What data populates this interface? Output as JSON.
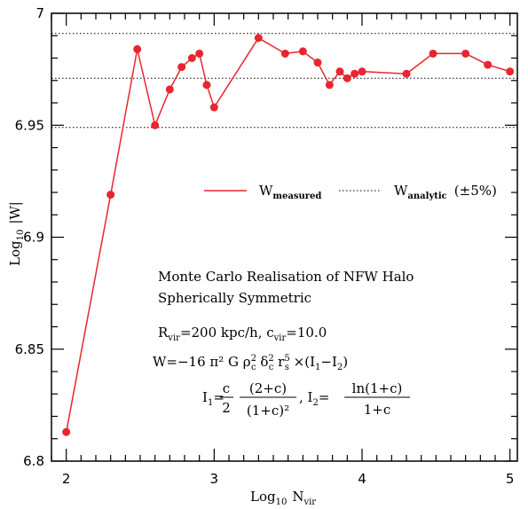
{
  "chart_data": {
    "type": "line",
    "xlabel_main": "Log",
    "xlabel_sub": "10",
    "xlabel_var": "N",
    "xlabel_var_sub": "vir",
    "ylabel_main": "Log",
    "ylabel_sub": "10",
    "ylabel_var": "|W|",
    "xlim": [
      1.9,
      5.05
    ],
    "ylim": [
      6.8,
      7.0
    ],
    "xticks": [
      "2",
      "3",
      "4",
      "5"
    ],
    "yticks": [
      "6.8",
      "6.85",
      "6.9",
      "6.95",
      "7"
    ],
    "series": [
      {
        "name": "W_measured",
        "color": "#e8262f",
        "x": [
          2.0,
          2.3,
          2.48,
          2.6,
          2.7,
          2.78,
          2.85,
          2.9,
          2.95,
          3.0,
          3.3,
          3.48,
          3.6,
          3.7,
          3.78,
          3.85,
          3.9,
          3.95,
          4.0,
          4.3,
          4.48,
          4.7,
          4.85,
          5.0
        ],
        "y": [
          6.813,
          6.919,
          6.984,
          6.95,
          6.966,
          6.976,
          6.98,
          6.982,
          6.968,
          6.958,
          6.989,
          6.982,
          6.983,
          6.978,
          6.968,
          6.974,
          6.971,
          6.973,
          6.974,
          6.973,
          6.982,
          6.982,
          6.977,
          6.974
        ]
      }
    ],
    "reference_lines": {
      "color": "#000000",
      "y": [
        6.991,
        6.971,
        6.949
      ]
    },
    "legend": {
      "measured_main": "W",
      "measured_sub": "measured",
      "analytic_main": "W",
      "analytic_sub": "analytic",
      "analytic_suffix": "(±5%)"
    },
    "annotations": {
      "line1": "Monte Carlo Realisation of NFW Halo",
      "line2": "Spherically Symmetric",
      "rvir_R": "R",
      "rvir_sub": "vir",
      "rvir_eq": "=200 kpc/h, c",
      "cvir_sub": "vir",
      "cvir_eq": "=10.0",
      "w_formula": "W=−16 π² G ρ",
      "rho_sup": "2",
      "rho_sub": "c",
      "delta": " δ",
      "delta_sup": "2",
      "delta_sub": "c",
      "rs": " r",
      "rs_sup": "5",
      "rs_sub": "s",
      "w_tail": " ×(I",
      "i1_sub": "1",
      "minus": "−I",
      "i2_sub": "2",
      "close": ")",
      "i1_lhs": "I",
      "i1_lhs_sub": "1",
      "eq": "=",
      "frac_c_num": "c",
      "frac_c_den": "2",
      "frac_2c_num": "(2+c)",
      "frac_2c_den": "(1+c)²",
      "comma_i2": ", I",
      "i2_lhs_sub": "2",
      "frac_ln_num": "ln(1+c)",
      "frac_ln_den": "1+c"
    }
  }
}
